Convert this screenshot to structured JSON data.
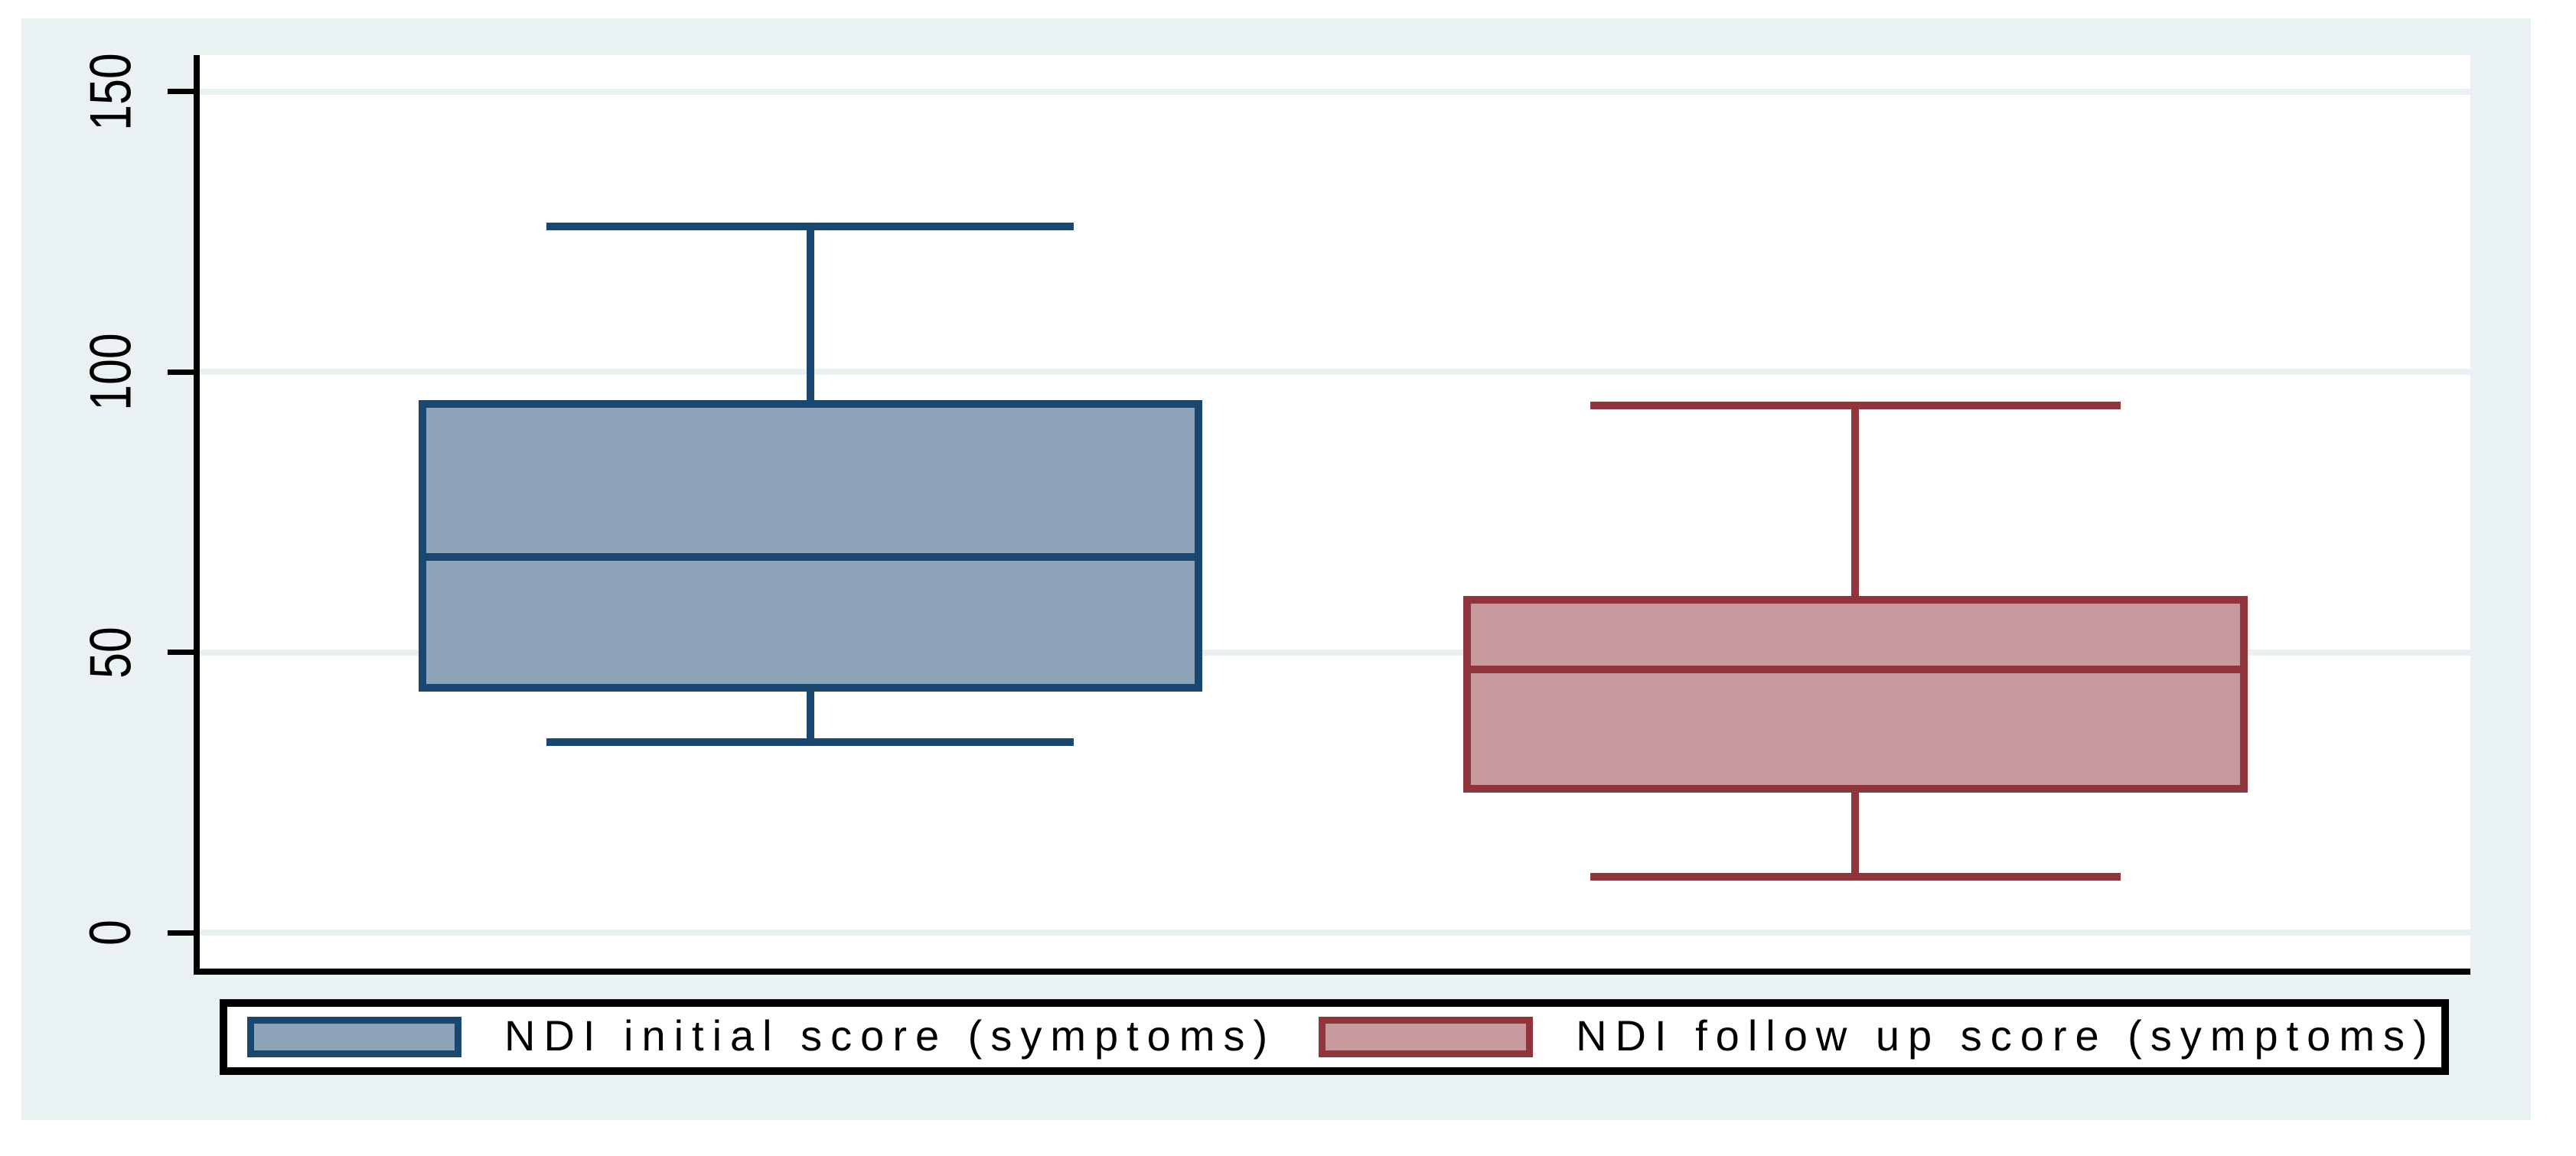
{
  "figure": {
    "page_background": "#FFFFFF",
    "graph_background": "#E9F1F3",
    "plot_background": "#FFFFFF",
    "gridline_color": "#E8F0F2",
    "axis_color": "#000000"
  },
  "chart_data": {
    "type": "box",
    "title": "",
    "xlabel": "",
    "ylabel": "",
    "grid": "horizontal gridlines at y ticks",
    "legend_position": "bottom",
    "y_axis": {
      "ticks": [
        0,
        50,
        100,
        150
      ],
      "tick_labels": [
        "0",
        "50",
        "100",
        "150"
      ],
      "range": [
        -7.5,
        157
      ]
    },
    "series": [
      {
        "name": "NDI initial score (symptoms)",
        "line_color": "#1A476F",
        "fill_color": "#8DA3B7",
        "whisker_low": 34,
        "q1": 43,
        "median": 67,
        "q3": 95,
        "whisker_high": 126
      },
      {
        "name": "NDI follow up score (symptoms)",
        "line_color": "#90353B",
        "fill_color": "#C89A9D",
        "whisker_low": 10,
        "q1": 25,
        "median": 47,
        "q3": 60,
        "whisker_high": 94
      }
    ]
  },
  "legend": {
    "items": [
      {
        "label": "NDI initial score (symptoms)"
      },
      {
        "label": "NDI follow up score (symptoms)"
      }
    ]
  }
}
